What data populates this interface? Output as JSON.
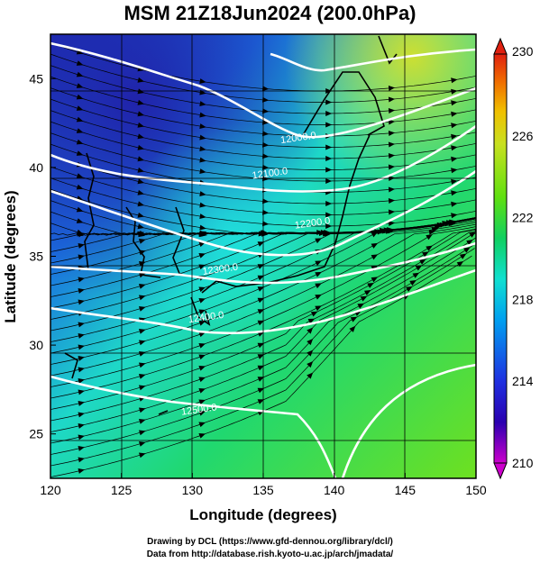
{
  "title": "MSM 21Z18Jun2024 (200.0hPa)",
  "map": {
    "xlabel": "Longitude (degrees)",
    "ylabel": "Latitude  (degrees)",
    "lon_range": [
      120,
      150
    ],
    "lat_range": [
      22.5,
      47.5
    ],
    "lon_ticks": [
      "120",
      "125",
      "130",
      "135",
      "140",
      "145",
      "150"
    ],
    "lat_ticks": [
      "25",
      "30",
      "35",
      "40",
      "45"
    ],
    "grid": true,
    "field": "temperature shading with geopotential height contours and wind streamlines",
    "contours": [
      {
        "label": "12000.0",
        "lon": 137.5,
        "lat": 41.5
      },
      {
        "label": "12100.0",
        "lon": 135.5,
        "lat": 39.5
      },
      {
        "label": "12200.0",
        "lon": 138.5,
        "lat": 36.7
      },
      {
        "label": "12300.0",
        "lon": 132.0,
        "lat": 34.1
      },
      {
        "label": "12400.0",
        "lon": 131.0,
        "lat": 31.4
      },
      {
        "label": "12500.0",
        "lon": 130.5,
        "lat": 26.2
      }
    ]
  },
  "colorbar": {
    "range": [
      210,
      230
    ],
    "tick_labels": [
      "230",
      "226",
      "222",
      "218",
      "214",
      "210"
    ],
    "colors": [
      "#cc00cc",
      "#2a00b0",
      "#1f30e0",
      "#00a0f0",
      "#10e0d0",
      "#10d060",
      "#60e010",
      "#c8e020",
      "#f0c000",
      "#f07000",
      "#e02010"
    ]
  },
  "credits": {
    "line1": "Drawing by DCL (https://www.gfd-dennou.org/library/dcl/)",
    "line2": "Data from http://database.rish.kyoto-u.ac.jp/arch/jmadata/"
  }
}
